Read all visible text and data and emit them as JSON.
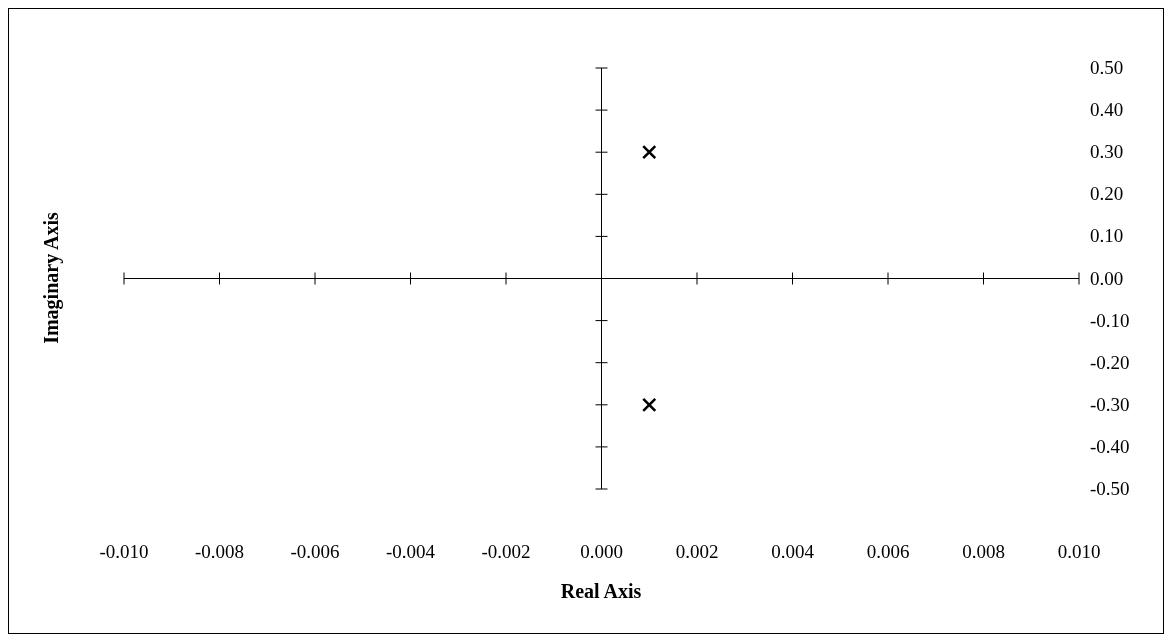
{
  "chart_data": {
    "type": "scatter",
    "xlabel": "Real Axis",
    "ylabel": "Imaginary Axis",
    "x": [
      0.001,
      0.001
    ],
    "values": [
      0.3,
      -0.3
    ],
    "color": "#000000",
    "marker": "cross",
    "xlim": [
      -0.01,
      0.01
    ],
    "xticks": [
      {
        "value": -0.01,
        "label": "-0.010"
      },
      {
        "value": -0.008,
        "label": "-0.008"
      },
      {
        "value": -0.006,
        "label": "-0.006"
      },
      {
        "value": -0.004,
        "label": "-0.004"
      },
      {
        "value": -0.002,
        "label": "-0.002"
      },
      {
        "value": 0,
        "label": "0.000"
      },
      {
        "value": 0.002,
        "label": "0.002"
      },
      {
        "value": 0.004,
        "label": "0.004"
      },
      {
        "value": 0.006,
        "label": "0.006"
      },
      {
        "value": 0.008,
        "label": "0.008"
      },
      {
        "value": 0.01,
        "label": "0.010"
      }
    ],
    "ylim": [
      -0.5,
      0.5
    ],
    "yticks": [
      {
        "value": 0.5,
        "label": "0.50"
      },
      {
        "value": 0.4,
        "label": "0.40"
      },
      {
        "value": 0.3,
        "label": "0.30"
      },
      {
        "value": 0.2,
        "label": "0.20"
      },
      {
        "value": 0.1,
        "label": "0.10"
      },
      {
        "value": 0,
        "label": "0.00"
      },
      {
        "value": -0.1,
        "label": "-0.10"
      },
      {
        "value": -0.2,
        "label": "-0.20"
      },
      {
        "value": -0.3,
        "label": "-0.30"
      },
      {
        "value": -0.4,
        "label": "-0.40"
      },
      {
        "value": -0.5,
        "label": "-0.50"
      }
    ]
  }
}
